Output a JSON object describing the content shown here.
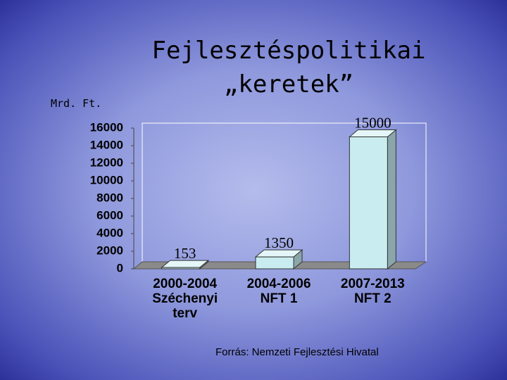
{
  "chart_data": {
    "type": "bar",
    "title": "Fejlesztéspolitikai „keretek”",
    "unit_label": "Mrd. Ft.",
    "categories": [
      "2000-2004 Széchenyi terv",
      "2004-2006 NFT 1",
      "2007-2013 NFT 2"
    ],
    "values": [
      153,
      1350,
      15000
    ],
    "color": "#c9ecf0",
    "ylim": [
      0,
      16000
    ],
    "yticks": [
      0,
      2000,
      4000,
      6000,
      8000,
      10000,
      12000,
      14000,
      16000
    ],
    "source": "Forrás: Nemzeti Fejlesztési Hivatal"
  }
}
